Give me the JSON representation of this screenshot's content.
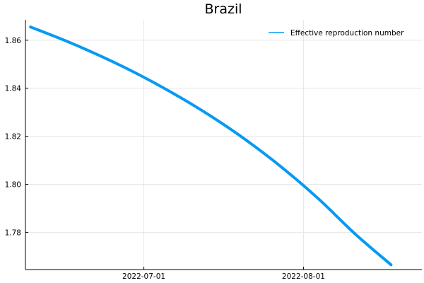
{
  "chart_data": {
    "type": "line",
    "title": "Brazil",
    "xlabel": "",
    "ylabel": "",
    "x_ticks": [
      "2022-07-01",
      "2022-08-01"
    ],
    "y_ticks": [
      "1.78",
      "1.80",
      "1.82",
      "1.84",
      "1.86"
    ],
    "xlim": [
      "2022-06-08",
      "2022-08-24"
    ],
    "ylim": [
      1.7645,
      1.8685
    ],
    "grid": true,
    "legend_position": "top-right",
    "series": [
      {
        "name": "Effective reproduction number",
        "color": "#069af3",
        "x": [
          "2022-06-09",
          "2022-06-16",
          "2022-06-23",
          "2022-06-30",
          "2022-07-07",
          "2022-07-14",
          "2022-07-21",
          "2022-07-28",
          "2022-08-04",
          "2022-08-11",
          "2022-08-18"
        ],
        "values": [
          1.8655,
          1.8596,
          1.853,
          1.8457,
          1.8375,
          1.8284,
          1.8182,
          1.8067,
          1.7938,
          1.7794,
          1.7665
        ]
      }
    ]
  }
}
